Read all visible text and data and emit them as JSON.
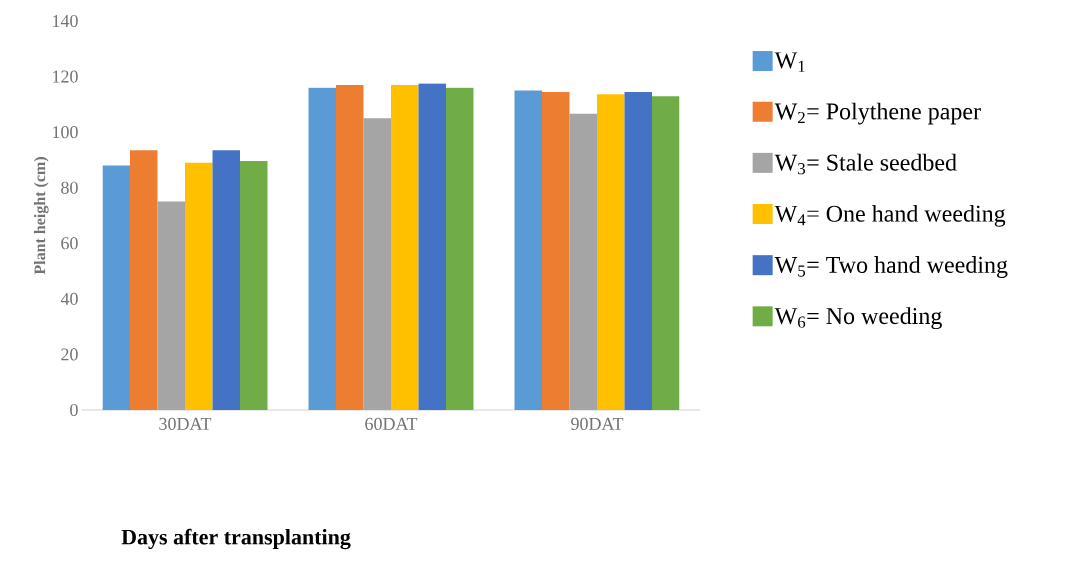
{
  "chart_data": {
    "type": "bar",
    "xlabel": "Days after transplanting",
    "ylabel": "Plant height (cm)",
    "categories": [
      "30DAT",
      "60DAT",
      "90DAT"
    ],
    "ylim": [
      0,
      140
    ],
    "yticks": [
      0,
      20,
      40,
      60,
      80,
      100,
      120,
      140
    ],
    "grid": false,
    "legend": "right",
    "series": [
      {
        "name": "W$_{1}$",
        "color": "#5b9bd5",
        "values": [
          88,
          116,
          115
        ]
      },
      {
        "name": "W$_{2}$= Polythene paper",
        "color": "#ed7d31",
        "values": [
          93.5,
          117,
          114.4
        ]
      },
      {
        "name": "W$_{3}$= Stale seedbed",
        "color": "#a5a5a5",
        "values": [
          75,
          105,
          106.7
        ]
      },
      {
        "name": "W$_{4}$= One hand weeding",
        "color": "#ffc000",
        "values": [
          89,
          117,
          113.6
        ]
      },
      {
        "name": "W$_{5}$= Two hand weeding",
        "color": "#4472c4",
        "values": [
          93.5,
          117.5,
          114.4
        ]
      },
      {
        "name": "W$_{6}$= No weeding",
        "color": "#70ad47",
        "values": [
          89.6,
          116,
          112.9
        ]
      }
    ]
  }
}
